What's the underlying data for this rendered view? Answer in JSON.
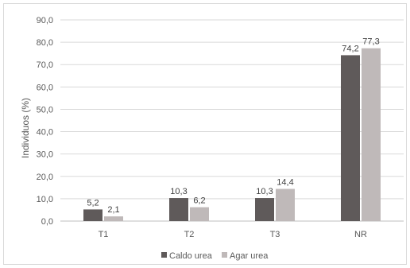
{
  "chart_data": {
    "type": "bar",
    "categories": [
      "T1",
      "T2",
      "T3",
      "NR"
    ],
    "series": [
      {
        "name": "Caldo urea",
        "values": [
          5.2,
          10.3,
          10.3,
          74.2
        ],
        "labels": [
          "5,2",
          "10,3",
          "10,3",
          "74,2"
        ],
        "color": "#5f5a5a"
      },
      {
        "name": "Agar urea",
        "values": [
          2.1,
          6.2,
          14.4,
          77.3
        ],
        "labels": [
          "2,1",
          "6,2",
          "14,4",
          "77,3"
        ],
        "color": "#bfb9b9"
      }
    ],
    "ylabel": "Individuos (%)",
    "xlabel": "",
    "ylim": [
      0,
      90
    ],
    "yticks": [
      0,
      10,
      20,
      30,
      40,
      50,
      60,
      70,
      80,
      90
    ],
    "ytick_labels": [
      "0,0",
      "10,0",
      "20,0",
      "30,0",
      "40,0",
      "50,0",
      "60,0",
      "70,0",
      "80,0",
      "90,0"
    ],
    "grid": true,
    "legend_position": "bottom"
  }
}
